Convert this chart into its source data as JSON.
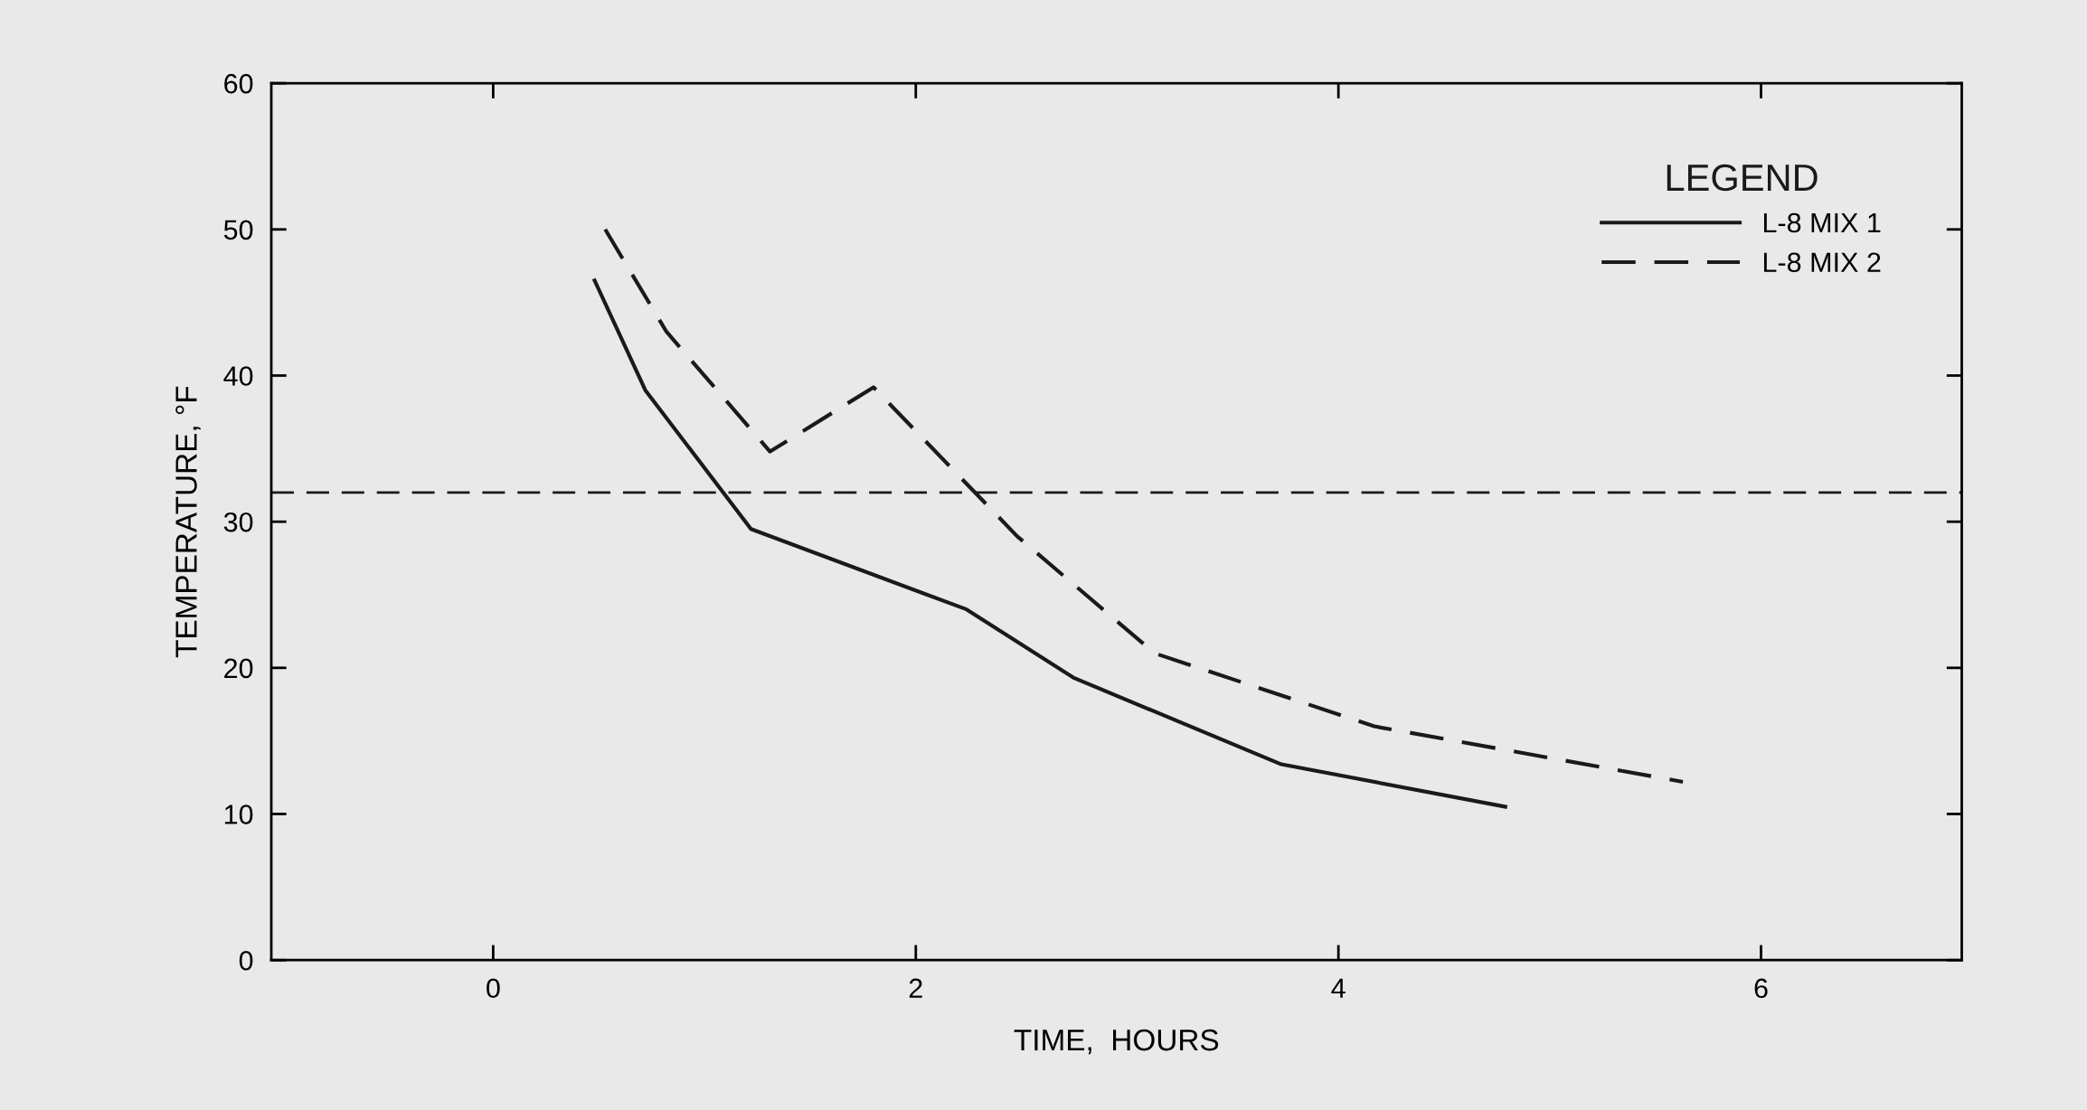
{
  "chart_data": {
    "type": "line",
    "xlabel": "TIME,  HOURS",
    "ylabel": "TEMPERATURE, °F",
    "legend_title": "LEGEND",
    "legend": "top right",
    "grid": false,
    "xlim": [
      -1.05,
      6.95
    ],
    "xticks": [
      0,
      2,
      4,
      6
    ],
    "ylim": [
      0,
      60
    ],
    "yticks": [
      0,
      10,
      20,
      30,
      40,
      50,
      60
    ],
    "series": [
      {
        "name": "L-8 MIX 1",
        "color": "#1a1a1a",
        "line_style": "solid",
        "x": [
          0.48,
          0.72,
          1.22,
          2.24,
          2.75,
          3.73,
          4.79
        ],
        "values": [
          46.5,
          39,
          29.5,
          24,
          19.3,
          13.4,
          10.5
        ]
      },
      {
        "name": "L-8 MIX 2",
        "color": "#1a1a1a",
        "line_style": "dashed",
        "x": [
          0.53,
          0.82,
          1.31,
          1.8,
          2.48,
          3.13,
          4.17,
          5.63
        ],
        "values": [
          50,
          43,
          34.8,
          39.2,
          29,
          21,
          16,
          12.2
        ]
      }
    ],
    "ref_lines": [
      {
        "axis": "y",
        "value": 32,
        "line_style": "dashed",
        "color": "#1a1a1a"
      }
    ]
  }
}
